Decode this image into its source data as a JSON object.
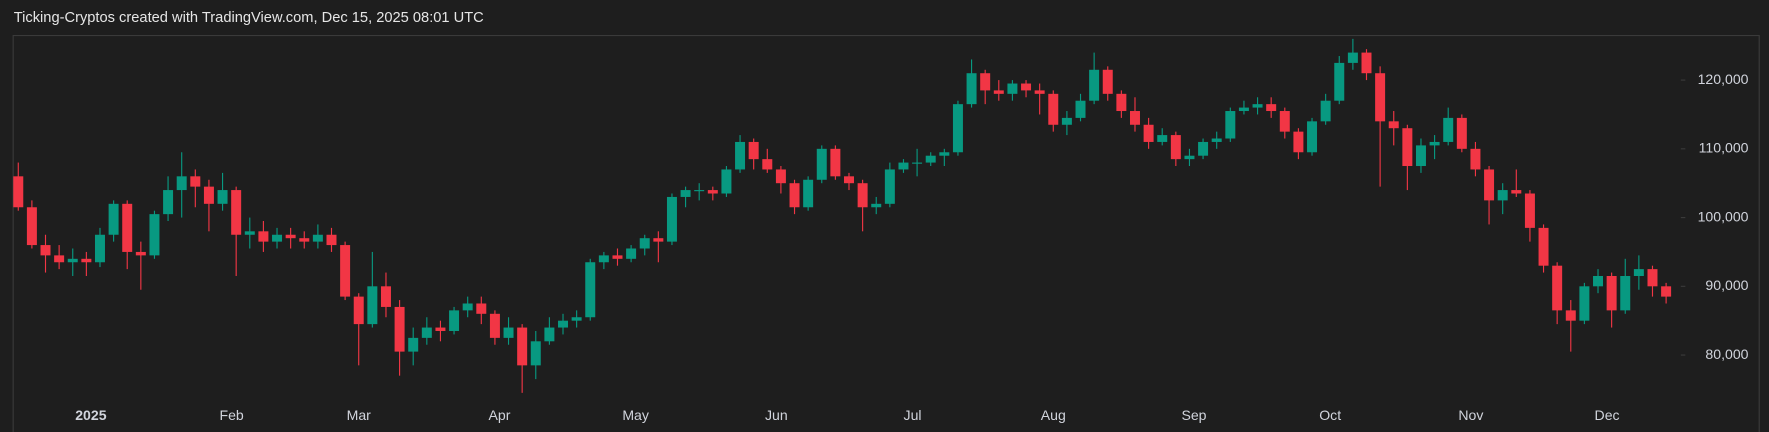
{
  "chart_data": {
    "type": "candlestick",
    "title": "Ticking-Cryptos created with TradingView.com, Dec 15, 2025 08:01 UTC",
    "up_color": "#089981",
    "down_color": "#f23645",
    "grid": false,
    "xlim": [
      -17,
      349
    ],
    "xticks": [
      {
        "value": 0,
        "label": "2025"
      },
      {
        "value": 31,
        "label": "Feb"
      },
      {
        "value": 59,
        "label": "Mar"
      },
      {
        "value": 90,
        "label": "Apr"
      },
      {
        "value": 120,
        "label": "May"
      },
      {
        "value": 151,
        "label": "Jun"
      },
      {
        "value": 181,
        "label": "Jul"
      },
      {
        "value": 212,
        "label": "Aug"
      },
      {
        "value": 243,
        "label": "Sep"
      },
      {
        "value": 273,
        "label": "Oct"
      },
      {
        "value": 304,
        "label": "Nov"
      },
      {
        "value": 334,
        "label": "Dec"
      }
    ],
    "ylim": [
      73400,
      126400
    ],
    "yticks": [
      {
        "value": 80000,
        "label": "80,000"
      },
      {
        "value": 90000,
        "label": "90,000"
      },
      {
        "value": 100000,
        "label": "100,000"
      },
      {
        "value": 110000,
        "label": "110,000"
      },
      {
        "value": 120000,
        "label": "120,000"
      }
    ],
    "x": [
      -16,
      -13,
      -10,
      -7,
      -4,
      -1,
      2,
      5,
      8,
      11,
      14,
      17,
      20,
      23,
      26,
      29,
      32,
      35,
      38,
      41,
      44,
      47,
      50,
      53,
      56,
      59,
      62,
      65,
      68,
      71,
      74,
      77,
      80,
      83,
      86,
      89,
      92,
      95,
      98,
      101,
      104,
      107,
      110,
      113,
      116,
      119,
      122,
      125,
      128,
      131,
      134,
      137,
      140,
      143,
      146,
      149,
      152,
      155,
      158,
      161,
      164,
      167,
      170,
      173,
      176,
      179,
      182,
      185,
      188,
      191,
      194,
      197,
      200,
      203,
      206,
      209,
      212,
      215,
      218,
      221,
      224,
      227,
      230,
      233,
      236,
      239,
      242,
      245,
      248,
      251,
      254,
      257,
      260,
      263,
      266,
      269,
      272,
      275,
      278,
      281,
      284,
      287,
      290,
      293,
      296,
      299,
      302,
      305,
      308,
      311,
      314,
      317,
      320,
      323,
      326,
      329,
      332,
      335,
      338,
      341,
      344,
      347
    ],
    "open": [
      106000,
      101500,
      96000,
      94500,
      93500,
      94000,
      93500,
      97500,
      102000,
      95000,
      94500,
      100500,
      104000,
      106000,
      104500,
      102000,
      104000,
      97500,
      98000,
      96500,
      97500,
      97000,
      96500,
      97500,
      96000,
      88500,
      84500,
      90000,
      87000,
      80500,
      82500,
      84000,
      83500,
      86500,
      87500,
      86000,
      82500,
      84000,
      78500,
      82000,
      84000,
      85000,
      85500,
      93500,
      94500,
      94000,
      95500,
      97000,
      96500,
      103000,
      104000,
      104000,
      103500,
      107000,
      111000,
      108500,
      107000,
      105000,
      101500,
      105500,
      110000,
      106000,
      105000,
      101500,
      102000,
      107000,
      108000,
      108000,
      109000,
      109500,
      116500,
      121000,
      118500,
      118000,
      119500,
      118500,
      118000,
      113500,
      114500,
      117000,
      121500,
      118000,
      115500,
      113500,
      111000,
      112000,
      108500,
      109000,
      111000,
      111500,
      115500,
      116000,
      116500,
      115500,
      112500,
      109500,
      114000,
      117000,
      122500,
      124000,
      121000,
      114000,
      113000,
      107500,
      110500,
      111000,
      114500,
      110000,
      107000,
      102500,
      104000,
      103500,
      98500,
      93000,
      86500,
      85000,
      90000,
      91500,
      86500,
      91500,
      92500,
      90000
    ],
    "high": [
      108000,
      102500,
      97500,
      96000,
      95500,
      95000,
      98500,
      102500,
      102500,
      96500,
      101000,
      106000,
      109500,
      107000,
      105500,
      106500,
      104500,
      100000,
      99500,
      98500,
      98500,
      98000,
      99000,
      98500,
      96500,
      89000,
      95000,
      92000,
      88000,
      84000,
      85500,
      85000,
      87000,
      88500,
      88500,
      86500,
      85500,
      84500,
      83500,
      85500,
      86000,
      86500,
      94000,
      95000,
      95500,
      96000,
      97500,
      98000,
      103500,
      104500,
      105000,
      104500,
      107500,
      112000,
      111500,
      110000,
      107500,
      105500,
      106000,
      110500,
      110500,
      106500,
      105500,
      103000,
      108000,
      108500,
      110000,
      109500,
      110000,
      117000,
      123000,
      121500,
      120000,
      120000,
      120000,
      119500,
      118500,
      115500,
      118000,
      124000,
      122000,
      118500,
      117500,
      114500,
      113000,
      112500,
      110000,
      111500,
      112500,
      116000,
      117000,
      117500,
      117500,
      116000,
      113000,
      114500,
      118000,
      123500,
      126000,
      124500,
      122000,
      115500,
      113500,
      111500,
      112000,
      116000,
      115000,
      111000,
      107500,
      105000,
      107000,
      104000,
      99000,
      93500,
      88000,
      90500,
      92500,
      92000,
      94000,
      94500,
      93000,
      90500
    ],
    "low": [
      101000,
      95500,
      92000,
      92500,
      91500,
      91500,
      92800,
      96500,
      92500,
      89500,
      94000,
      99500,
      100000,
      101500,
      98000,
      101000,
      91500,
      95500,
      95000,
      95500,
      95500,
      95500,
      95500,
      95000,
      88000,
      78500,
      84000,
      85500,
      77000,
      78500,
      81500,
      82000,
      83000,
      85500,
      84500,
      81500,
      81500,
      74500,
      76500,
      81500,
      83000,
      84000,
      85000,
      92500,
      93000,
      93500,
      94500,
      93500,
      96000,
      101500,
      102500,
      102500,
      103000,
      106500,
      107000,
      106500,
      103500,
      100500,
      101000,
      105000,
      105500,
      104000,
      98000,
      100500,
      101500,
      106500,
      106000,
      107500,
      107500,
      109000,
      116000,
      116500,
      117000,
      117000,
      117500,
      115000,
      112500,
      112000,
      114000,
      116500,
      117000,
      114500,
      112500,
      110000,
      110500,
      107500,
      107500,
      108500,
      110000,
      111000,
      115000,
      115000,
      114500,
      111500,
      108500,
      109000,
      113500,
      116500,
      121500,
      120000,
      104500,
      110500,
      104000,
      106500,
      108500,
      110500,
      109500,
      106000,
      99000,
      100500,
      103000,
      96500,
      92000,
      84500,
      80500,
      84500,
      89000,
      84000,
      86000,
      89500,
      88500,
      87500
    ],
    "close": [
      101500,
      96000,
      94500,
      93500,
      94000,
      93500,
      97500,
      102000,
      95000,
      94500,
      100500,
      104000,
      106000,
      104500,
      102000,
      104000,
      97500,
      98000,
      96500,
      97500,
      97000,
      96500,
      97500,
      96000,
      88500,
      84500,
      90000,
      87000,
      80500,
      82500,
      84000,
      83500,
      86500,
      87500,
      86000,
      82500,
      84000,
      78500,
      82000,
      84000,
      85000,
      85500,
      93500,
      94500,
      94000,
      95500,
      97000,
      96500,
      103000,
      104000,
      104000,
      103500,
      107000,
      111000,
      108500,
      107000,
      105000,
      101500,
      105500,
      110000,
      106000,
      105000,
      101500,
      102000,
      107000,
      108000,
      108000,
      109000,
      109500,
      116500,
      121000,
      118500,
      118000,
      119500,
      118500,
      118000,
      113500,
      114500,
      117000,
      121500,
      118000,
      115500,
      113500,
      111000,
      112000,
      108500,
      109000,
      111000,
      111500,
      115500,
      116000,
      116500,
      115500,
      112500,
      109500,
      114000,
      117000,
      122500,
      124000,
      121000,
      114000,
      113000,
      107500,
      110500,
      111000,
      114500,
      110000,
      107000,
      102500,
      104000,
      103500,
      98500,
      93000,
      86500,
      85000,
      90000,
      91500,
      86500,
      91500,
      92500,
      90000,
      88500
    ]
  }
}
